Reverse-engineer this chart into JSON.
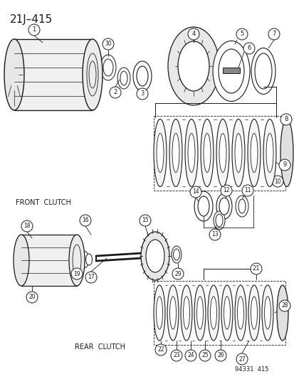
{
  "title": "21J–415",
  "bg_color": "#ffffff",
  "line_color": "#1a1a1a",
  "front_clutch_text": "FRONT  CLUTCH",
  "rear_clutch_text": "REAR  CLUTCH",
  "doc_number_text": "94331  415",
  "fig_w": 4.14,
  "fig_h": 5.33,
  "dpi": 100
}
